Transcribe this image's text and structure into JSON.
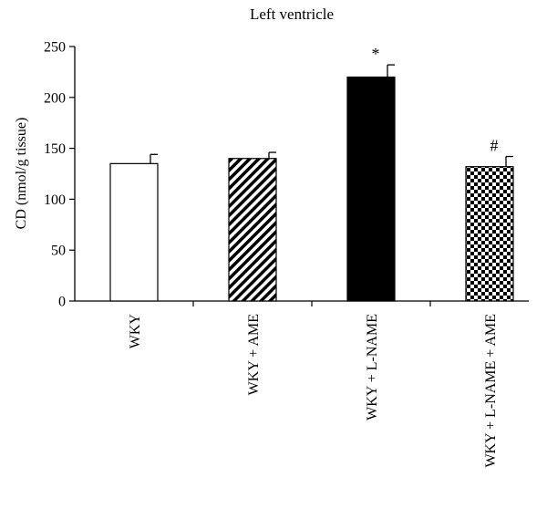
{
  "chart_data": {
    "type": "bar",
    "title": "Left ventricle",
    "ylabel": "CD (nmol/g tissue)",
    "xlabel": "",
    "ylim": [
      0,
      250
    ],
    "yticks": [
      0,
      50,
      100,
      150,
      200,
      250
    ],
    "categories": [
      "WKY",
      "WKY + AME",
      "WKY + L-NAME",
      "WKY + L-NAME + AME"
    ],
    "values": [
      135,
      140,
      220,
      132
    ],
    "errors": [
      9,
      6,
      12,
      10
    ],
    "annotations": [
      "",
      "",
      "*",
      "#"
    ],
    "fills": [
      "white",
      "diagonal-stripes",
      "solid-black",
      "checkerboard"
    ],
    "colors": {
      "bar_stroke": "#000000",
      "black": "#000000",
      "white": "#ffffff"
    }
  }
}
